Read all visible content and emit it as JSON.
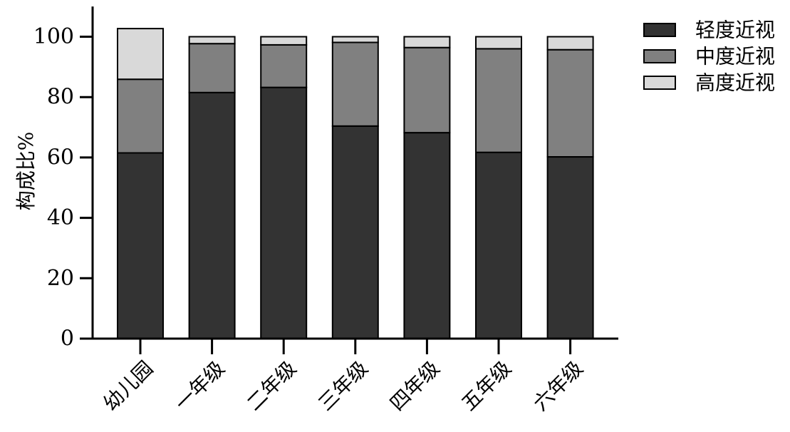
{
  "chart_data": {
    "type": "bar",
    "stacked": true,
    "categories": [
      "幼儿园",
      "一年级",
      "二年级",
      "三年级",
      "四年级",
      "五年级",
      "六年级"
    ],
    "series": [
      {
        "name": "轻度近视",
        "color": "#333333",
        "values": [
          61.5,
          81.5,
          83.2,
          70.4,
          68.2,
          61.7,
          60.2
        ]
      },
      {
        "name": "中度近视",
        "color": "#808080",
        "values": [
          24.4,
          16.2,
          14.1,
          27.7,
          28.2,
          34.3,
          35.5
        ]
      },
      {
        "name": "高度近视",
        "color": "#d9d9d9",
        "values": [
          16.8,
          2.3,
          2.7,
          1.9,
          3.6,
          4.0,
          4.3
        ]
      }
    ],
    "ylabel": "构成比%",
    "xlabel": "",
    "ylim": [
      0,
      110
    ],
    "yticks": [
      0,
      20,
      40,
      60,
      80,
      100
    ],
    "grid": false,
    "legend_position": "top-right"
  }
}
